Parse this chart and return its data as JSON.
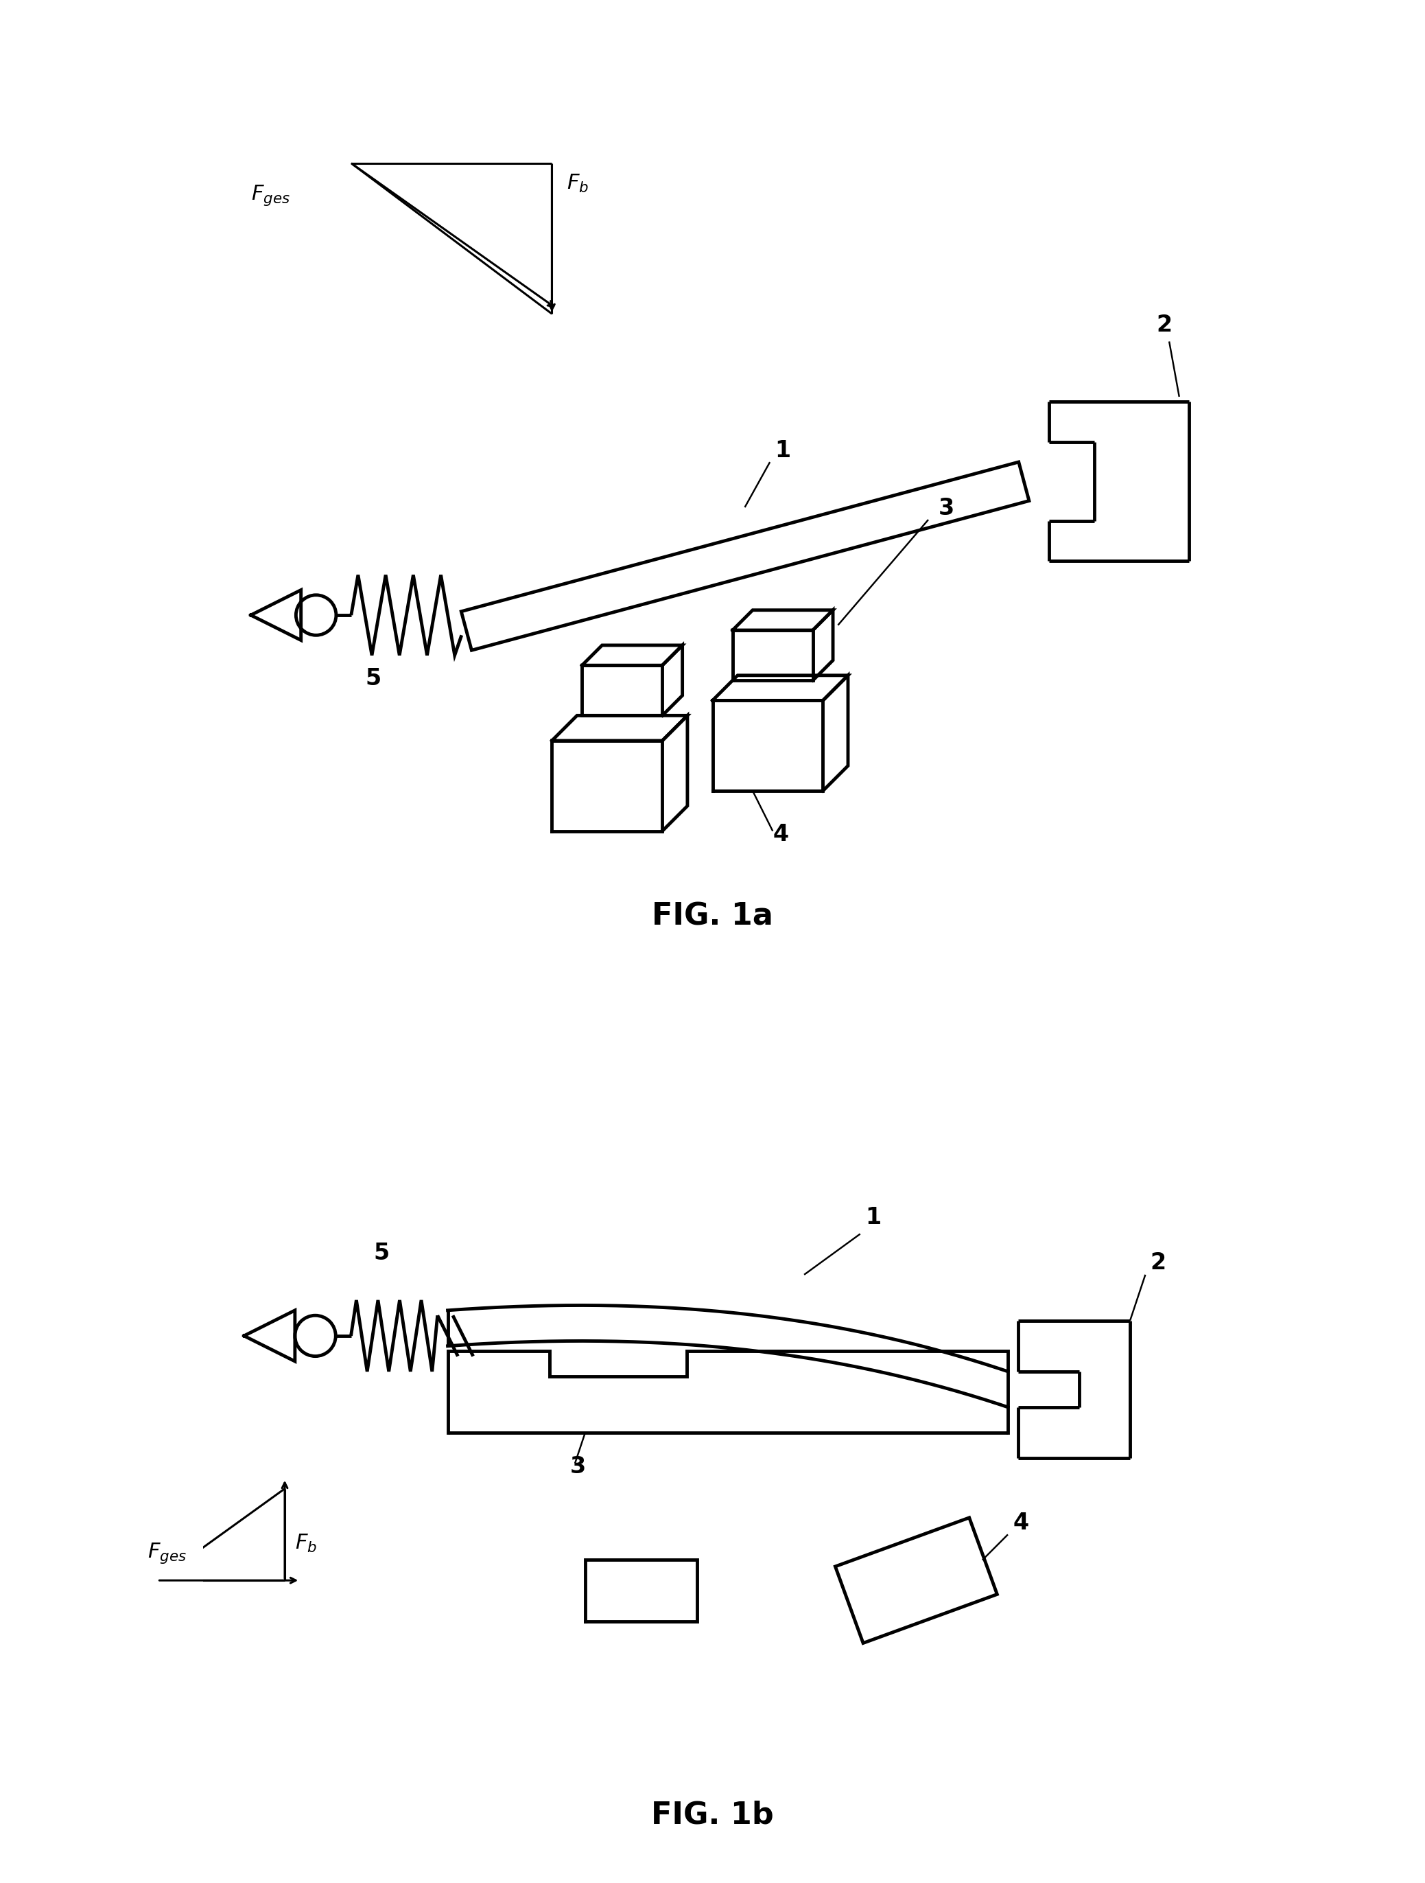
{
  "bg_color": "#ffffff",
  "line_color": "#000000",
  "lw": 2.2,
  "lw_thick": 3.5,
  "fig_width": 20.77,
  "fig_height": 27.43,
  "fig1a_title": "FIG. 1a",
  "fig1b_title": "FIG. 1b",
  "title_fontsize": 32,
  "label_fontsize": 24,
  "annot_fontsize": 22
}
